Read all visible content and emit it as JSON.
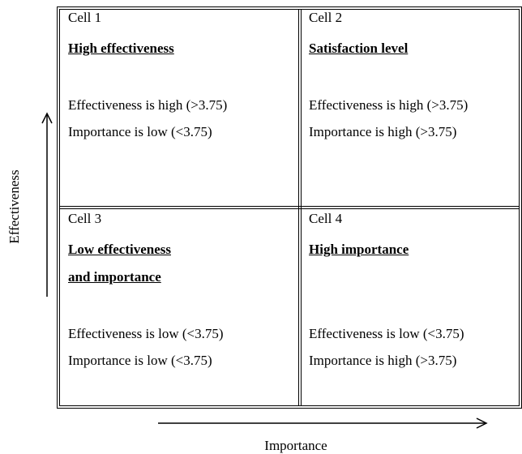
{
  "cells": [
    {
      "label": "Cell 1",
      "title": [
        "High effectiveness"
      ],
      "lines": [
        "Effectiveness is high (>3.75)",
        "Importance is low (<3.75)"
      ]
    },
    {
      "label": "Cell 2",
      "title": [
        "Satisfaction level"
      ],
      "lines": [
        "Effectiveness is high (>3.75)",
        "Importance is high (>3.75)"
      ]
    },
    {
      "label": "Cell 3",
      "title": [
        "Low effectiveness",
        "and importance"
      ],
      "lines": [
        "Effectiveness is low (<3.75)",
        "Importance is low (<3.75)"
      ]
    },
    {
      "label": "Cell 4",
      "title": [
        "High importance"
      ],
      "lines": [
        "Effectiveness is low (<3.75)",
        "Importance is high (>3.75)"
      ]
    }
  ],
  "y_axis_label": "Effectiveness",
  "x_axis_label": "Importance"
}
